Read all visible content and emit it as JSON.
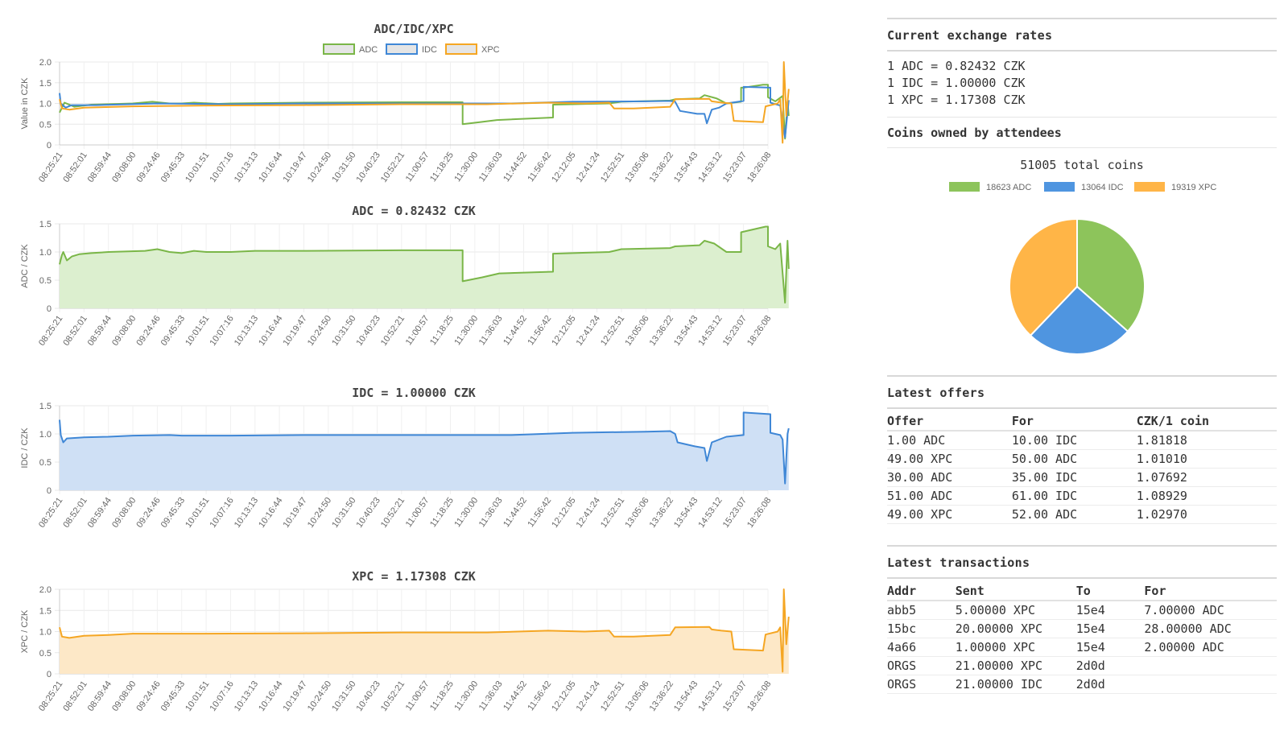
{
  "colors": {
    "ADC": "#7ab648",
    "IDC": "#3f87d6",
    "XPC": "#f5a623",
    "ADC_fill": "#dcefcf",
    "IDC_fill": "#cfe0f5",
    "XPC_fill": "#fde8c7"
  },
  "time_labels": [
    "08:25:21",
    "08:52:01",
    "08:59:44",
    "09:08:00",
    "09:24:46",
    "09:45:33",
    "10:01:51",
    "10:07:16",
    "10:13:13",
    "10:16:44",
    "10:19:47",
    "10:24:50",
    "10:31:50",
    "10:40:23",
    "10:52:21",
    "11:00:57",
    "11:18:25",
    "11:30:00",
    "11:36:03",
    "11:44:52",
    "11:56:42",
    "12:12:05",
    "12:41:24",
    "12:52:51",
    "13:05:06",
    "13:36:22",
    "13:54:43",
    "14:53:12",
    "15:23:07",
    "18:26:08"
  ],
  "chart_data": [
    {
      "type": "line",
      "title": "ADC/IDC/XPC",
      "ylabel": "Value in CZK",
      "ylim": [
        0,
        2.0
      ],
      "yticks": [
        "0",
        "0.5",
        "1.0",
        "1.5",
        "2.0"
      ],
      "legend": [
        "ADC",
        "IDC",
        "XPC"
      ],
      "legend_placement": "top",
      "series": [
        {
          "name": "ADC",
          "points": [
            [
              0,
              0.78
            ],
            [
              0.2,
              1.02
            ],
            [
              0.6,
              0.92
            ],
            [
              1.3,
              0.97
            ],
            [
              3,
              1.0
            ],
            [
              3.8,
              1.04
            ],
            [
              4.5,
              1.0
            ],
            [
              5,
              1.0
            ],
            [
              5.5,
              1.02
            ],
            [
              6.5,
              0.99
            ],
            [
              7,
              1.0
            ],
            [
              10,
              1.02
            ],
            [
              14,
              1.03
            ],
            [
              16.5,
              1.03
            ],
            [
              16.5,
              0.5
            ],
            [
              17.2,
              0.55
            ],
            [
              17.9,
              0.6
            ],
            [
              20.2,
              0.66
            ],
            [
              20.2,
              0.97
            ],
            [
              22.5,
              1.0
            ],
            [
              23,
              1.04
            ],
            [
              25,
              1.07
            ],
            [
              25.2,
              1.1
            ],
            [
              26.2,
              1.12
            ],
            [
              26.4,
              1.2
            ],
            [
              26.9,
              1.12
            ],
            [
              27.3,
              1.0
            ],
            [
              27.9,
              1.04
            ],
            [
              27.9,
              1.38
            ],
            [
              28,
              1.38
            ],
            [
              28.8,
              1.45
            ],
            [
              29,
              1.45
            ],
            [
              29,
              1.15
            ],
            [
              29.3,
              1.05
            ],
            [
              29.6,
              1.18
            ],
            [
              29.7,
              0.15
            ],
            [
              29.8,
              1.05
            ],
            [
              29.85,
              0.7
            ]
          ]
        },
        {
          "name": "IDC",
          "points": [
            [
              0,
              1.25
            ],
            [
              0.05,
              1.0
            ],
            [
              0.25,
              0.9
            ],
            [
              0.5,
              0.96
            ],
            [
              1.5,
              0.96
            ],
            [
              4,
              1.0
            ],
            [
              7,
              0.98
            ],
            [
              10,
              1.0
            ],
            [
              14.5,
              1.0
            ],
            [
              16.5,
              1.0
            ],
            [
              18.5,
              1.0
            ],
            [
              21,
              1.04
            ],
            [
              24,
              1.05
            ],
            [
              25,
              1.06
            ],
            [
              25.2,
              1.04
            ],
            [
              25.4,
              0.82
            ],
            [
              26.1,
              0.75
            ],
            [
              26.4,
              0.75
            ],
            [
              26.5,
              0.52
            ],
            [
              26.7,
              0.85
            ],
            [
              27,
              0.9
            ],
            [
              27.3,
              1.0
            ],
            [
              28,
              1.06
            ],
            [
              28,
              1.4
            ],
            [
              29.1,
              1.38
            ],
            [
              29.1,
              1.02
            ],
            [
              29.5,
              0.95
            ],
            [
              29.7,
              0.18
            ],
            [
              29.85,
              1.08
            ]
          ]
        },
        {
          "name": "XPC",
          "points": [
            [
              0,
              1.1
            ],
            [
              0.1,
              0.88
            ],
            [
              0.4,
              0.85
            ],
            [
              1,
              0.9
            ],
            [
              3,
              0.93
            ],
            [
              6,
              0.95
            ],
            [
              10,
              0.96
            ],
            [
              14,
              0.98
            ],
            [
              16.5,
              0.98
            ],
            [
              17.5,
              0.98
            ],
            [
              20,
              1.02
            ],
            [
              21.5,
              1.0
            ],
            [
              22.5,
              1.02
            ],
            [
              22.7,
              0.88
            ],
            [
              23.5,
              0.88
            ],
            [
              25,
              0.92
            ],
            [
              25.2,
              1.1
            ],
            [
              26.6,
              1.11
            ],
            [
              26.7,
              1.05
            ],
            [
              27.1,
              1.02
            ],
            [
              27.5,
              1.0
            ],
            [
              27.6,
              0.58
            ],
            [
              28.8,
              0.55
            ],
            [
              28.9,
              0.93
            ],
            [
              29.4,
              1.0
            ],
            [
              29.5,
              1.1
            ],
            [
              29.6,
              0.05
            ],
            [
              29.65,
              2.0
            ],
            [
              29.75,
              0.7
            ],
            [
              29.85,
              1.35
            ]
          ]
        }
      ]
    },
    {
      "type": "area",
      "title": "ADC = 0.82432 CZK",
      "ylabel": "ADC / CZK",
      "ylim": [
        0,
        1.5
      ],
      "yticks": [
        "0",
        "0.5",
        "1.0",
        "1.5"
      ],
      "series": [
        {
          "name": "ADC",
          "points": [
            [
              0,
              0.78
            ],
            [
              0.1,
              0.95
            ],
            [
              0.15,
              1.0
            ],
            [
              0.3,
              0.85
            ],
            [
              0.5,
              0.92
            ],
            [
              0.8,
              0.96
            ],
            [
              1.3,
              0.98
            ],
            [
              2,
              1.0
            ],
            [
              3.5,
              1.02
            ],
            [
              4,
              1.05
            ],
            [
              4.5,
              1.0
            ],
            [
              5,
              0.98
            ],
            [
              5.5,
              1.02
            ],
            [
              6,
              1.0
            ],
            [
              7,
              1.0
            ],
            [
              8,
              1.02
            ],
            [
              10,
              1.02
            ],
            [
              14,
              1.03
            ],
            [
              16.5,
              1.03
            ],
            [
              16.5,
              0.48
            ],
            [
              17.3,
              0.55
            ],
            [
              18,
              0.62
            ],
            [
              20.2,
              0.65
            ],
            [
              20.2,
              0.97
            ],
            [
              22.5,
              1.0
            ],
            [
              23,
              1.05
            ],
            [
              25,
              1.07
            ],
            [
              25.2,
              1.1
            ],
            [
              26.2,
              1.12
            ],
            [
              26.4,
              1.2
            ],
            [
              26.8,
              1.15
            ],
            [
              27.3,
              1.0
            ],
            [
              27.9,
              1.0
            ],
            [
              27.9,
              1.35
            ],
            [
              28.2,
              1.38
            ],
            [
              28.9,
              1.45
            ],
            [
              29,
              1.45
            ],
            [
              29,
              1.1
            ],
            [
              29.3,
              1.05
            ],
            [
              29.5,
              1.15
            ],
            [
              29.7,
              0.1
            ],
            [
              29.8,
              1.2
            ],
            [
              29.85,
              0.7
            ]
          ]
        }
      ]
    },
    {
      "type": "area",
      "title": "IDC = 1.00000 CZK",
      "ylabel": "IDC / CZK",
      "ylim": [
        0,
        1.5
      ],
      "yticks": [
        "0",
        "0.5",
        "1.0",
        "1.5"
      ],
      "series": [
        {
          "name": "IDC",
          "points": [
            [
              0,
              1.25
            ],
            [
              0.05,
              0.98
            ],
            [
              0.15,
              0.85
            ],
            [
              0.3,
              0.92
            ],
            [
              1,
              0.94
            ],
            [
              2,
              0.95
            ],
            [
              3,
              0.97
            ],
            [
              4.5,
              0.98
            ],
            [
              5,
              0.97
            ],
            [
              7,
              0.97
            ],
            [
              10,
              0.98
            ],
            [
              14,
              0.98
            ],
            [
              16.5,
              0.98
            ],
            [
              18.5,
              0.98
            ],
            [
              21,
              1.02
            ],
            [
              24,
              1.04
            ],
            [
              25,
              1.05
            ],
            [
              25.2,
              1.0
            ],
            [
              25.3,
              0.85
            ],
            [
              26,
              0.78
            ],
            [
              26.4,
              0.75
            ],
            [
              26.5,
              0.52
            ],
            [
              26.7,
              0.85
            ],
            [
              27,
              0.9
            ],
            [
              27.3,
              0.95
            ],
            [
              28,
              0.98
            ],
            [
              28,
              1.38
            ],
            [
              29.1,
              1.35
            ],
            [
              29.1,
              1.02
            ],
            [
              29.5,
              0.98
            ],
            [
              29.6,
              0.9
            ],
            [
              29.7,
              0.12
            ],
            [
              29.8,
              1.0
            ],
            [
              29.85,
              1.1
            ]
          ]
        }
      ]
    },
    {
      "type": "area",
      "title": "XPC = 1.17308 CZK",
      "ylabel": "XPC / CZK",
      "ylim": [
        0,
        2.0
      ],
      "yticks": [
        "0",
        "0.5",
        "1.0",
        "1.5",
        "2.0"
      ],
      "series": [
        {
          "name": "XPC",
          "points": [
            [
              0,
              1.1
            ],
            [
              0.1,
              0.88
            ],
            [
              0.4,
              0.85
            ],
            [
              1,
              0.9
            ],
            [
              2,
              0.92
            ],
            [
              3,
              0.95
            ],
            [
              6,
              0.95
            ],
            [
              10,
              0.96
            ],
            [
              14,
              0.98
            ],
            [
              16.5,
              0.98
            ],
            [
              17.5,
              0.98
            ],
            [
              20,
              1.02
            ],
            [
              21.5,
              1.0
            ],
            [
              22.5,
              1.02
            ],
            [
              22.7,
              0.88
            ],
            [
              23.5,
              0.88
            ],
            [
              25,
              0.92
            ],
            [
              25.2,
              1.1
            ],
            [
              26.6,
              1.11
            ],
            [
              26.7,
              1.05
            ],
            [
              27.1,
              1.02
            ],
            [
              27.5,
              1.0
            ],
            [
              27.6,
              0.58
            ],
            [
              28.8,
              0.55
            ],
            [
              28.9,
              0.93
            ],
            [
              29.4,
              1.0
            ],
            [
              29.5,
              1.1
            ],
            [
              29.6,
              0.05
            ],
            [
              29.65,
              2.0
            ],
            [
              29.75,
              0.7
            ],
            [
              29.85,
              1.35
            ]
          ]
        }
      ]
    },
    {
      "type": "pie",
      "title": "51005 total coins",
      "labels": [
        "18623 ADC",
        "13064 IDC",
        "19319 XPC"
      ],
      "values": [
        18623,
        13064,
        19319
      ],
      "legend_placement": "top"
    }
  ],
  "side": {
    "rates_title": "Current exchange rates",
    "rates": [
      "1 ADC = 0.82432 CZK",
      "1 IDC = 1.00000 CZK",
      "1 XPC = 1.17308 CZK"
    ],
    "coins_title": "Coins owned by attendees",
    "offers_title": "Latest offers",
    "offers_headers": [
      "Offer",
      "For",
      "CZK/1 coin"
    ],
    "offers": [
      [
        "1.00 ADC",
        "10.00 IDC",
        "1.81818"
      ],
      [
        "49.00 XPC",
        "50.00 ADC",
        "1.01010"
      ],
      [
        "30.00 ADC",
        "35.00 IDC",
        "1.07692"
      ],
      [
        "51.00 ADC",
        "61.00 IDC",
        "1.08929"
      ],
      [
        "49.00 XPC",
        "52.00 ADC",
        "1.02970"
      ]
    ],
    "tx_title": "Latest transactions",
    "tx_headers": [
      "Addr",
      "Sent",
      "To",
      "For"
    ],
    "tx": [
      [
        "abb5",
        "5.00000 XPC",
        "15e4",
        "7.00000 ADC"
      ],
      [
        "15bc",
        "20.00000 XPC",
        "15e4",
        "28.00000 ADC"
      ],
      [
        "4a66",
        "1.00000 XPC",
        "15e4",
        "2.00000 ADC"
      ],
      [
        "ORGS",
        "21.00000 XPC",
        "2d0d",
        ""
      ],
      [
        "ORGS",
        "21.00000 IDC",
        "2d0d",
        ""
      ]
    ]
  }
}
